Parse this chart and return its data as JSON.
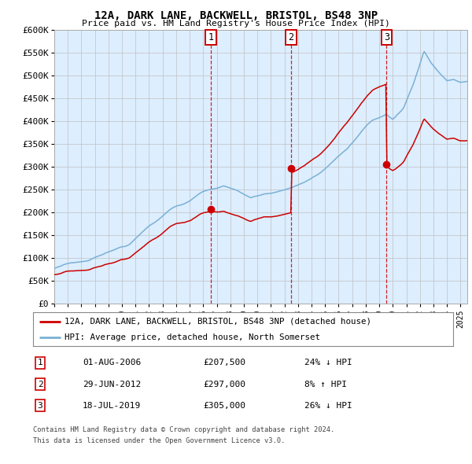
{
  "title": "12A, DARK LANE, BACKWELL, BRISTOL, BS48 3NP",
  "subtitle": "Price paid vs. HM Land Registry's House Price Index (HPI)",
  "hpi_color": "#7ab0d4",
  "price_color": "#cc0000",
  "bg_color": "#ddeeff",
  "grid_color": "#c0c0c0",
  "ylabel_ticks": [
    "£0",
    "£50K",
    "£100K",
    "£150K",
    "£200K",
    "£250K",
    "£300K",
    "£350K",
    "£400K",
    "£450K",
    "£500K",
    "£550K",
    "£600K"
  ],
  "ytick_values": [
    0,
    50000,
    100000,
    150000,
    200000,
    250000,
    300000,
    350000,
    400000,
    450000,
    500000,
    550000,
    600000
  ],
  "transactions": [
    {
      "num": 1,
      "date": "01-AUG-2006",
      "year": 2006.58,
      "price": 207500,
      "pct": "24%",
      "dir": "↓"
    },
    {
      "num": 2,
      "date": "29-JUN-2012",
      "year": 2012.49,
      "price": 297000,
      "pct": "8%",
      "dir": "↑"
    },
    {
      "num": 3,
      "date": "18-JUL-2019",
      "year": 2019.54,
      "price": 305000,
      "pct": "26%",
      "dir": "↓"
    }
  ],
  "legend_line1": "12A, DARK LANE, BACKWELL, BRISTOL, BS48 3NP (detached house)",
  "legend_line2": "HPI: Average price, detached house, North Somerset",
  "footnote1": "Contains HM Land Registry data © Crown copyright and database right 2024.",
  "footnote2": "This data is licensed under the Open Government Licence v3.0.",
  "xmin": 1995.0,
  "xmax": 2025.5,
  "ymin": 0,
  "ymax": 600000
}
